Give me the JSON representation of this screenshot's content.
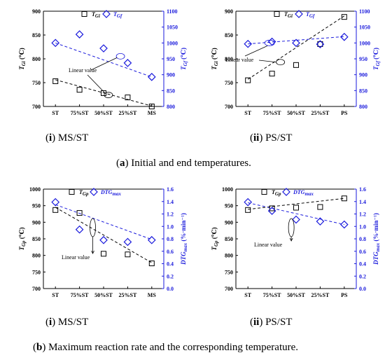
{
  "captions": {
    "sub_i_a": "(i) MS/ST",
    "sub_ii_a": "(ii) PS/ST",
    "main_a": "(a) Initial and end temperatures.",
    "sub_i_b": "(i) MS/ST",
    "sub_ii_b": "(ii) PS/ST",
    "main_b": "(b) Maximum reaction rate and the corresponding temperature."
  },
  "colors": {
    "left": "#000000",
    "right": "#1a1adc"
  },
  "chart_data": [
    {
      "type": "scatter",
      "categories": [
        "ST",
        "75%ST",
        "50%ST",
        "25%ST",
        "MS"
      ],
      "ylabel": "T_Gi (℃)",
      "ylabel_right": "T_Gf (℃)",
      "ylim": [
        700,
        900
      ],
      "yticks": [
        700,
        750,
        800,
        850,
        900
      ],
      "ylim_right": [
        800,
        1100
      ],
      "yticks_right": [
        800,
        850,
        900,
        950,
        1000,
        1050,
        1100
      ],
      "annotation": "Linear value",
      "series": [
        {
          "name": "T_Gi",
          "axis": "left",
          "marker": "square",
          "values": [
            753,
            735,
            728,
            719,
            700
          ]
        },
        {
          "name": "T_Gf",
          "axis": "right",
          "marker": "diamond",
          "values": [
            1000,
            1027,
            983,
            937,
            893
          ]
        }
      ],
      "trendlines": [
        {
          "axis": "left",
          "y_start": 756,
          "y_end": 701
        },
        {
          "axis": "right",
          "y_start": 1000,
          "y_end": 893
        }
      ]
    },
    {
      "type": "scatter",
      "categories": [
        "ST",
        "75%ST",
        "50%ST",
        "25%ST",
        "PS"
      ],
      "ylabel": "T_Gi (℃)",
      "ylabel_right": "T_Gf (℃)",
      "ylim": [
        700,
        900
      ],
      "yticks": [
        700,
        750,
        800,
        850,
        900
      ],
      "ylim_right": [
        800,
        1100
      ],
      "yticks_right": [
        800,
        850,
        900,
        950,
        1000,
        1050,
        1100
      ],
      "annotation": "Linear value",
      "series": [
        {
          "name": "T_Gi",
          "axis": "left",
          "marker": "square",
          "values": [
            755,
            769,
            787,
            831,
            888
          ]
        },
        {
          "name": "T_Gf",
          "axis": "right",
          "marker": "diamond",
          "values": [
            997,
            1004,
            1000,
            996,
            1019
          ]
        }
      ],
      "trendlines": [
        {
          "axis": "left",
          "y_start": 757,
          "y_end": 890
        },
        {
          "axis": "right",
          "y_start": 997,
          "y_end": 1020
        }
      ]
    },
    {
      "type": "scatter",
      "categories": [
        "ST",
        "75%ST",
        "50%ST",
        "25%ST",
        "MS"
      ],
      "ylabel": "T_Gp (℃)",
      "ylabel_right": "DTG_max (%·min⁻¹)",
      "ylim": [
        700,
        1000
      ],
      "yticks": [
        700,
        750,
        800,
        850,
        900,
        950,
        1000
      ],
      "ylim_right": [
        0.0,
        1.6
      ],
      "yticks_right": [
        0.0,
        0.2,
        0.4,
        0.6,
        0.8,
        1.0,
        1.2,
        1.4,
        1.6
      ],
      "annotation": "Linear value",
      "series": [
        {
          "name": "T_Gp",
          "axis": "left",
          "marker": "square",
          "values": [
            937,
            928,
            805,
            803,
            776
          ]
        },
        {
          "name": "DTG_max",
          "axis": "right",
          "marker": "diamond",
          "values": [
            1.39,
            0.95,
            0.78,
            0.75,
            0.78
          ]
        }
      ],
      "trendlines": [
        {
          "axis": "left",
          "y_start": 945,
          "y_end": 778
        },
        {
          "axis": "right",
          "y_start": 1.35,
          "y_end": 0.79
        }
      ]
    },
    {
      "type": "scatter",
      "categories": [
        "ST",
        "75%ST",
        "50%ST",
        "25%ST",
        "PS"
      ],
      "ylabel": "T_Gp (℃)",
      "ylabel_right": "DTG_max (%·min⁻¹)",
      "ylim": [
        700,
        1000
      ],
      "yticks": [
        700,
        750,
        800,
        850,
        900,
        950,
        1000
      ],
      "ylim_right": [
        0.0,
        1.6
      ],
      "yticks_right": [
        0.0,
        0.2,
        0.4,
        0.6,
        0.8,
        1.0,
        1.2,
        1.4,
        1.6
      ],
      "annotation": "Linear value",
      "series": [
        {
          "name": "T_Gp",
          "axis": "left",
          "marker": "square",
          "values": [
            937,
            942,
            944,
            946,
            972
          ]
        },
        {
          "name": "DTG_max",
          "axis": "right",
          "marker": "diamond",
          "values": [
            1.39,
            1.25,
            1.11,
            1.08,
            1.03
          ]
        }
      ],
      "trendlines": [
        {
          "axis": "left",
          "y_start": 939,
          "y_end": 972
        },
        {
          "axis": "right",
          "y_start": 1.38,
          "y_end": 1.03
        }
      ]
    }
  ]
}
